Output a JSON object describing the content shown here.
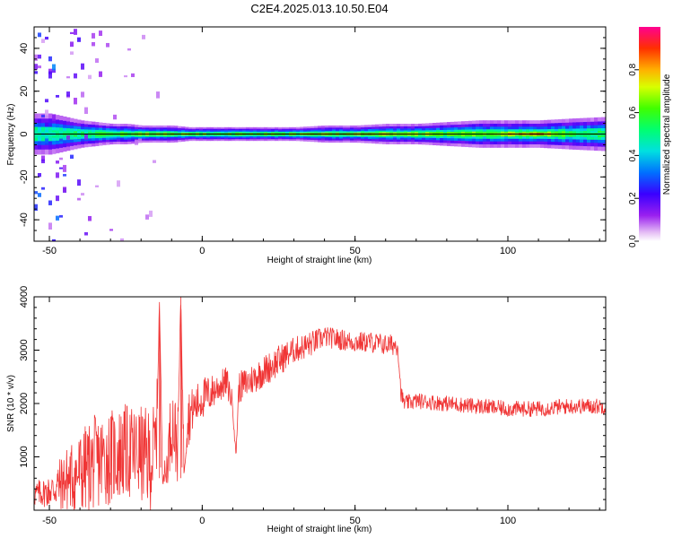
{
  "title": "C2E4.2025.013.10.50.E04",
  "chart_data": [
    {
      "type": "heatmap",
      "title": "C2E4.2025.013.10.50.E04",
      "xlabel": "Height of straight line (km)",
      "ylabel": "Frequency (Hz)",
      "xlim": [
        -55,
        132
      ],
      "ylim": [
        -50,
        50
      ],
      "xticks": [
        -50,
        0,
        50,
        100
      ],
      "yticks": [
        -40,
        -20,
        0,
        20,
        40
      ],
      "colorbar": {
        "label": "Normalized spectral amplitude",
        "range": [
          0,
          1
        ],
        "ticks": [
          "0.0",
          "0.2",
          "0.4",
          "0.6",
          "0.8"
        ]
      },
      "centerline_hz": 0,
      "band_profile": {
        "x": [
          -55,
          -50,
          -45,
          -40,
          -35,
          -30,
          -25,
          -20,
          -15,
          -10,
          -5,
          0,
          10,
          20,
          30,
          40,
          50,
          60,
          70,
          80,
          90,
          100,
          110,
          120,
          132
        ],
        "halfwidth_hz": [
          6,
          6,
          5,
          4,
          3.5,
          3,
          3,
          2.5,
          2.5,
          2.5,
          2,
          2,
          2,
          2,
          2,
          2.5,
          2.5,
          3,
          3,
          3.5,
          4,
          4,
          4,
          4.5,
          5
        ],
        "core_amplitude": [
          0.45,
          0.45,
          0.5,
          0.5,
          0.55,
          0.6,
          0.65,
          0.7,
          0.75,
          0.8,
          0.85,
          0.9,
          0.9,
          0.92,
          0.92,
          0.9,
          0.85,
          0.8,
          0.7,
          0.65,
          0.6,
          0.8,
          0.85,
          0.55,
          0.5
        ],
        "scatter_amplitude": [
          0.25,
          0.25,
          0.2,
          0.15,
          0.08,
          0.06,
          0.05,
          0.04,
          0.03,
          0,
          0,
          0,
          0,
          0,
          0,
          0,
          0,
          0,
          0,
          0,
          0,
          0,
          0,
          0,
          0
        ]
      }
    },
    {
      "type": "line",
      "xlabel": "Height of straight line (km)",
      "ylabel": "SNR (10 * v/v)",
      "xlim": [
        -55,
        132
      ],
      "ylim": [
        0,
        4000
      ],
      "xticks": [
        -50,
        0,
        50,
        100
      ],
      "yticks": [
        1000,
        2000,
        3000,
        4000
      ],
      "color": "#f03535",
      "series": [
        {
          "x": [
            -55,
            -50,
            -45,
            -40,
            -35,
            -30,
            -25,
            -20,
            -17,
            -15,
            -14,
            -13,
            -12,
            -10,
            -8,
            -7,
            -6,
            -5,
            -3,
            0,
            3,
            5,
            8,
            10,
            11,
            12,
            15,
            20,
            25,
            30,
            35,
            40,
            45,
            50,
            55,
            60,
            64,
            65,
            66,
            70,
            80,
            90,
            100,
            110,
            120,
            132
          ],
          "y": [
            300,
            350,
            550,
            700,
            900,
            1000,
            1100,
            1050,
            900,
            1300,
            3900,
            800,
            600,
            1700,
            1200,
            4000,
            900,
            1700,
            1900,
            2100,
            2200,
            2300,
            2400,
            2000,
            1000,
            2300,
            2400,
            2600,
            2800,
            3000,
            3100,
            3250,
            3200,
            3150,
            3150,
            3100,
            3100,
            2200,
            2000,
            2050,
            2000,
            1950,
            1900,
            1900,
            1950,
            1950
          ],
          "noise": [
            250,
            300,
            600,
            800,
            900,
            900,
            900,
            900,
            1000,
            800,
            0,
            300,
            300,
            800,
            700,
            0,
            500,
            600,
            400,
            400,
            350,
            300,
            300,
            200,
            100,
            300,
            300,
            300,
            300,
            250,
            250,
            200,
            200,
            200,
            200,
            200,
            200,
            150,
            150,
            150,
            150,
            150,
            150,
            150,
            150,
            150
          ]
        }
      ]
    }
  ]
}
